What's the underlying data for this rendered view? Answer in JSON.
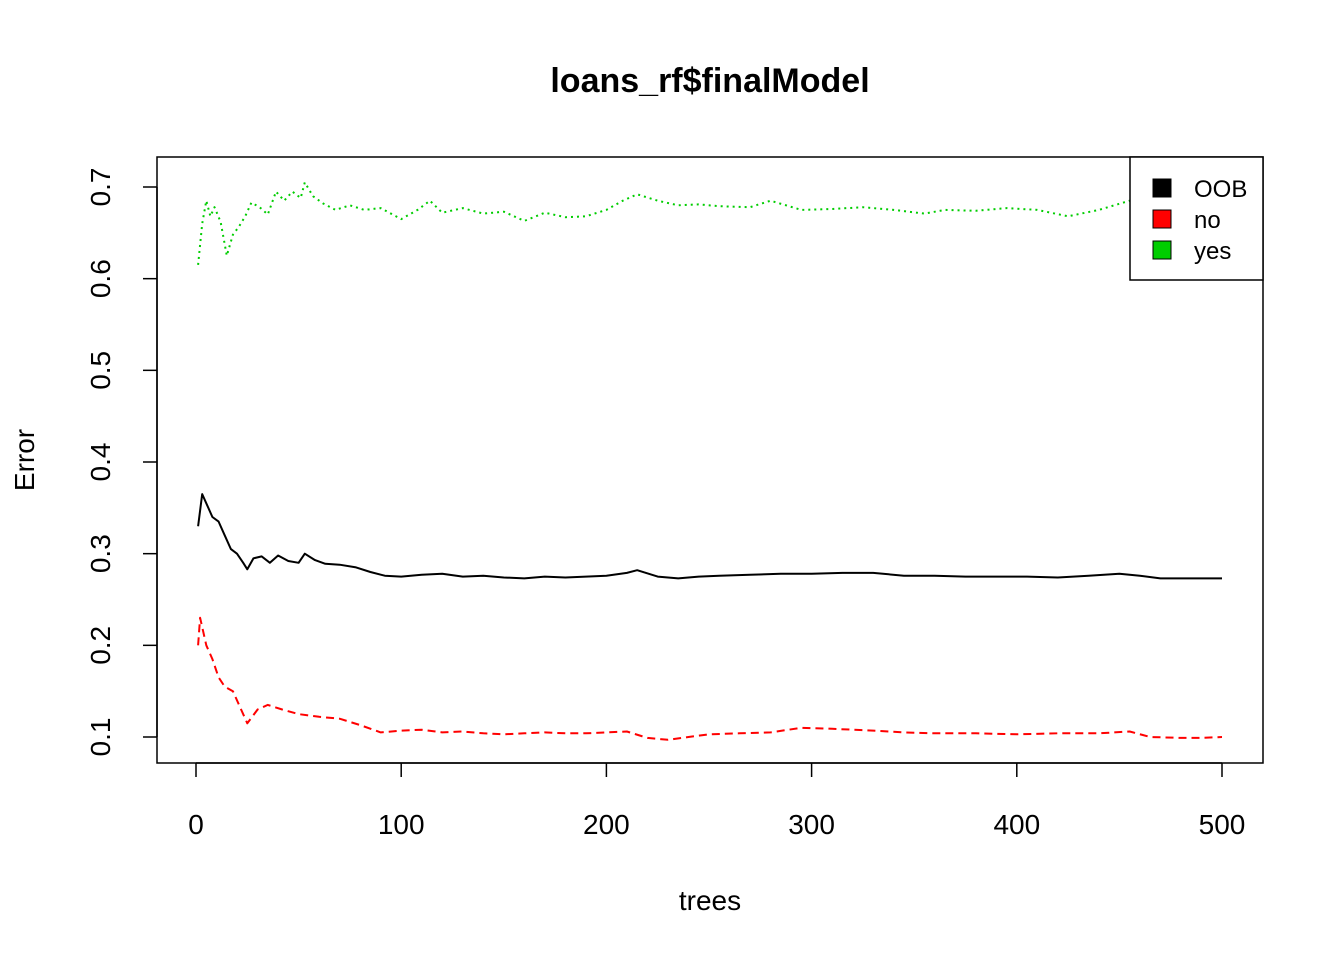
{
  "chart_data": {
    "type": "line",
    "title": "loans_rf$finalModel",
    "xlabel": "trees",
    "ylabel": "Error",
    "xlim": [
      0,
      500
    ],
    "ylim": [
      0.1,
      0.7
    ],
    "x_ticks": [
      "0",
      "100",
      "200",
      "300",
      "400",
      "500"
    ],
    "y_ticks": [
      "0.1",
      "0.2",
      "0.3",
      "0.4",
      "0.5",
      "0.6",
      "0.7"
    ],
    "legend_position": "top-right",
    "series": [
      {
        "name": "OOB",
        "color": "#000000",
        "dash": "solid",
        "points": [
          [
            1,
            0.33
          ],
          [
            3,
            0.365
          ],
          [
            5,
            0.355
          ],
          [
            8,
            0.34
          ],
          [
            11,
            0.335
          ],
          [
            14,
            0.32
          ],
          [
            17,
            0.305
          ],
          [
            20,
            0.3
          ],
          [
            23,
            0.29
          ],
          [
            25,
            0.283
          ],
          [
            28,
            0.295
          ],
          [
            32,
            0.297
          ],
          [
            36,
            0.29
          ],
          [
            40,
            0.298
          ],
          [
            45,
            0.292
          ],
          [
            50,
            0.29
          ],
          [
            53,
            0.3
          ],
          [
            58,
            0.293
          ],
          [
            63,
            0.289
          ],
          [
            70,
            0.288
          ],
          [
            78,
            0.285
          ],
          [
            85,
            0.28
          ],
          [
            92,
            0.276
          ],
          [
            100,
            0.275
          ],
          [
            110,
            0.277
          ],
          [
            120,
            0.278
          ],
          [
            130,
            0.275
          ],
          [
            140,
            0.276
          ],
          [
            150,
            0.274
          ],
          [
            160,
            0.273
          ],
          [
            170,
            0.275
          ],
          [
            180,
            0.274
          ],
          [
            190,
            0.275
          ],
          [
            200,
            0.276
          ],
          [
            210,
            0.279
          ],
          [
            215,
            0.282
          ],
          [
            225,
            0.275
          ],
          [
            235,
            0.273
          ],
          [
            245,
            0.275
          ],
          [
            255,
            0.276
          ],
          [
            270,
            0.277
          ],
          [
            285,
            0.278
          ],
          [
            300,
            0.278
          ],
          [
            315,
            0.279
          ],
          [
            330,
            0.279
          ],
          [
            345,
            0.276
          ],
          [
            360,
            0.276
          ],
          [
            375,
            0.275
          ],
          [
            390,
            0.275
          ],
          [
            405,
            0.275
          ],
          [
            420,
            0.274
          ],
          [
            435,
            0.276
          ],
          [
            450,
            0.278
          ],
          [
            460,
            0.276
          ],
          [
            470,
            0.273
          ],
          [
            480,
            0.273
          ],
          [
            490,
            0.273
          ],
          [
            500,
            0.273
          ]
        ]
      },
      {
        "name": "no",
        "color": "#ff0000",
        "dash": "dashed",
        "points": [
          [
            1,
            0.2
          ],
          [
            2,
            0.23
          ],
          [
            5,
            0.2
          ],
          [
            8,
            0.185
          ],
          [
            11,
            0.165
          ],
          [
            14,
            0.155
          ],
          [
            18,
            0.15
          ],
          [
            22,
            0.13
          ],
          [
            25,
            0.115
          ],
          [
            30,
            0.13
          ],
          [
            35,
            0.135
          ],
          [
            42,
            0.13
          ],
          [
            50,
            0.125
          ],
          [
            60,
            0.122
          ],
          [
            70,
            0.12
          ],
          [
            80,
            0.113
          ],
          [
            90,
            0.105
          ],
          [
            100,
            0.107
          ],
          [
            110,
            0.108
          ],
          [
            120,
            0.105
          ],
          [
            130,
            0.106
          ],
          [
            140,
            0.104
          ],
          [
            150,
            0.103
          ],
          [
            160,
            0.104
          ],
          [
            170,
            0.105
          ],
          [
            180,
            0.104
          ],
          [
            190,
            0.104
          ],
          [
            200,
            0.105
          ],
          [
            210,
            0.106
          ],
          [
            220,
            0.099
          ],
          [
            230,
            0.097
          ],
          [
            240,
            0.1
          ],
          [
            250,
            0.103
          ],
          [
            265,
            0.104
          ],
          [
            280,
            0.105
          ],
          [
            295,
            0.11
          ],
          [
            310,
            0.109
          ],
          [
            330,
            0.107
          ],
          [
            345,
            0.105
          ],
          [
            360,
            0.104
          ],
          [
            380,
            0.104
          ],
          [
            400,
            0.103
          ],
          [
            420,
            0.104
          ],
          [
            440,
            0.104
          ],
          [
            455,
            0.106
          ],
          [
            465,
            0.1
          ],
          [
            480,
            0.099
          ],
          [
            490,
            0.099
          ],
          [
            500,
            0.1
          ]
        ]
      },
      {
        "name": "yes",
        "color": "#00cd00",
        "dash": "dotted",
        "points": [
          [
            1,
            0.615
          ],
          [
            3,
            0.66
          ],
          [
            5,
            0.685
          ],
          [
            7,
            0.668
          ],
          [
            9,
            0.678
          ],
          [
            12,
            0.662
          ],
          [
            15,
            0.625
          ],
          [
            18,
            0.648
          ],
          [
            21,
            0.657
          ],
          [
            24,
            0.668
          ],
          [
            27,
            0.683
          ],
          [
            31,
            0.678
          ],
          [
            35,
            0.67
          ],
          [
            39,
            0.695
          ],
          [
            43,
            0.685
          ],
          [
            47,
            0.695
          ],
          [
            51,
            0.688
          ],
          [
            53,
            0.705
          ],
          [
            57,
            0.69
          ],
          [
            62,
            0.682
          ],
          [
            68,
            0.675
          ],
          [
            75,
            0.68
          ],
          [
            82,
            0.675
          ],
          [
            90,
            0.677
          ],
          [
            100,
            0.665
          ],
          [
            108,
            0.675
          ],
          [
            114,
            0.685
          ],
          [
            120,
            0.672
          ],
          [
            130,
            0.677
          ],
          [
            140,
            0.671
          ],
          [
            150,
            0.673
          ],
          [
            160,
            0.663
          ],
          [
            170,
            0.672
          ],
          [
            180,
            0.667
          ],
          [
            190,
            0.668
          ],
          [
            200,
            0.675
          ],
          [
            208,
            0.685
          ],
          [
            215,
            0.692
          ],
          [
            225,
            0.685
          ],
          [
            235,
            0.68
          ],
          [
            245,
            0.681
          ],
          [
            255,
            0.679
          ],
          [
            270,
            0.678
          ],
          [
            280,
            0.685
          ],
          [
            295,
            0.675
          ],
          [
            310,
            0.676
          ],
          [
            325,
            0.678
          ],
          [
            340,
            0.675
          ],
          [
            355,
            0.671
          ],
          [
            365,
            0.675
          ],
          [
            380,
            0.674
          ],
          [
            395,
            0.677
          ],
          [
            410,
            0.675
          ],
          [
            425,
            0.668
          ],
          [
            440,
            0.675
          ],
          [
            455,
            0.685
          ],
          [
            465,
            0.69
          ],
          [
            480,
            0.688
          ],
          [
            490,
            0.688
          ],
          [
            500,
            0.689
          ]
        ]
      }
    ]
  }
}
